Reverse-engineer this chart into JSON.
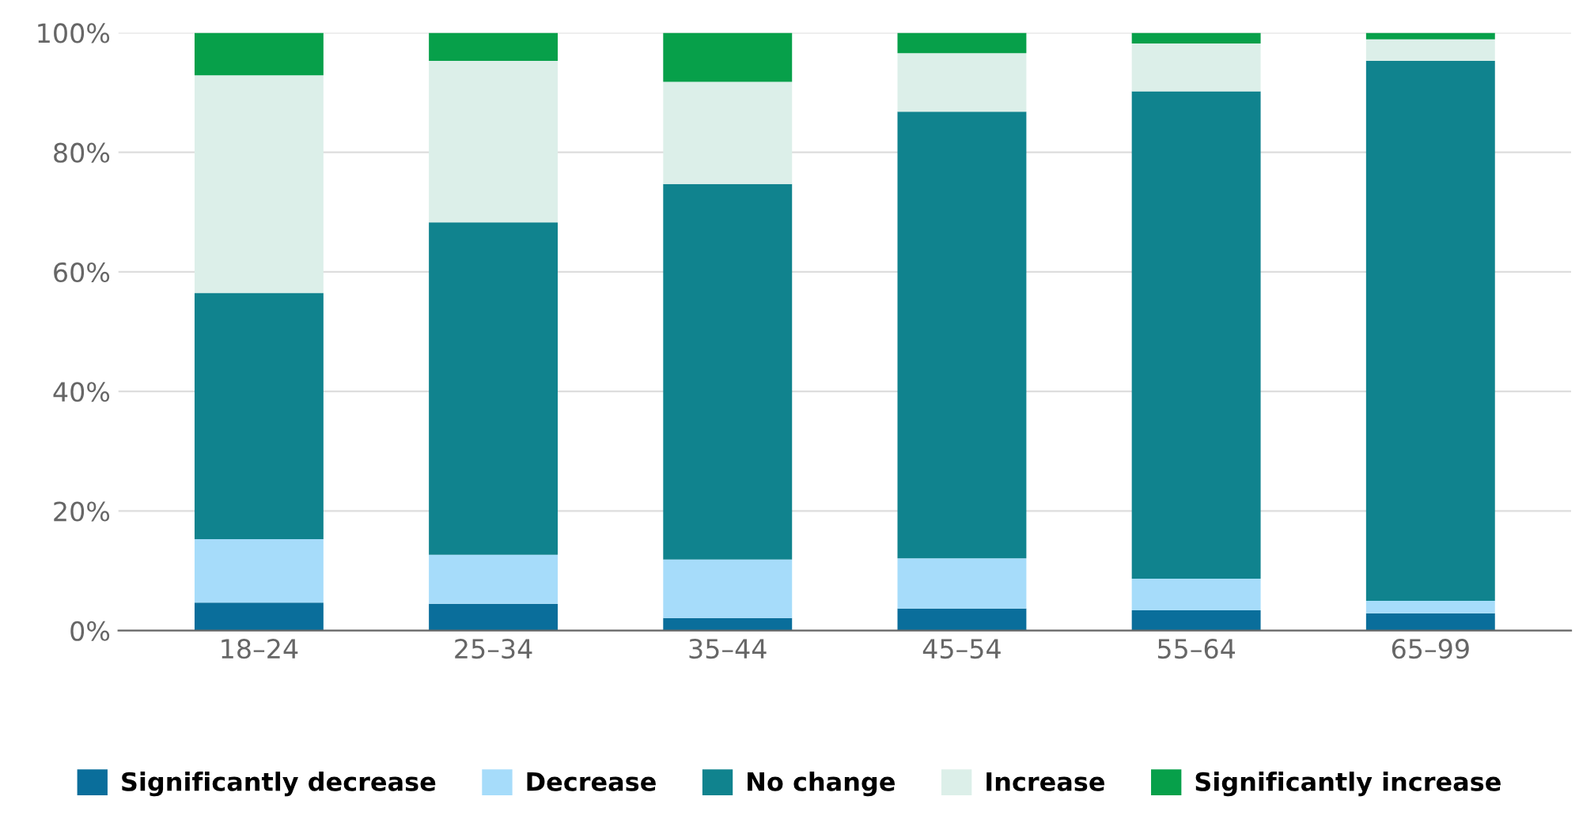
{
  "chart_data": {
    "type": "bar",
    "stacked": true,
    "categories": [
      "18–24",
      "25–34",
      "35–44",
      "45–54",
      "55–64",
      "65–99"
    ],
    "series": [
      {
        "name": "Significantly decrease",
        "color": "#0a6e9b",
        "values": [
          4.7,
          4.5,
          2.1,
          3.7,
          3.4,
          2.9
        ]
      },
      {
        "name": "Decrease",
        "color": "#a6dcfa",
        "values": [
          10.6,
          8.2,
          9.8,
          8.4,
          5.3,
          2.1
        ]
      },
      {
        "name": "No change",
        "color": "#10838e",
        "values": [
          41.2,
          55.6,
          62.8,
          74.7,
          81.5,
          90.3
        ]
      },
      {
        "name": "Increase",
        "color": "#dcefe9",
        "values": [
          36.4,
          27.0,
          17.1,
          9.8,
          8.0,
          3.6
        ]
      },
      {
        "name": "Significantly increase",
        "color": "#07a04a",
        "values": [
          7.1,
          4.7,
          8.2,
          3.4,
          1.8,
          1.1
        ]
      }
    ],
    "ylim": [
      0,
      100
    ],
    "yticks": [
      {
        "value": 0,
        "label": "0%"
      },
      {
        "value": 20,
        "label": "20%"
      },
      {
        "value": 40,
        "label": "40%"
      },
      {
        "value": 60,
        "label": "60%"
      },
      {
        "value": 80,
        "label": "80%"
      },
      {
        "value": 100,
        "label": "100%"
      }
    ],
    "grid": "y",
    "legend": "bottom"
  }
}
